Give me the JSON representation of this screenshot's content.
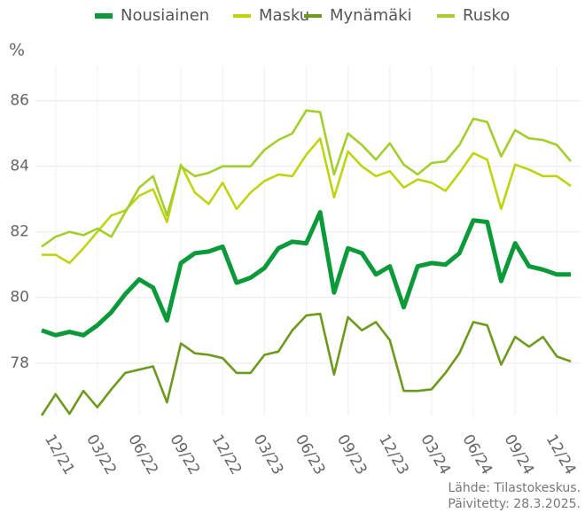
{
  "chart_data": {
    "type": "line",
    "y_label": "%",
    "notes": [
      "Lähde: Tilastokeskus.",
      "Päivitetty: 28.3.2025."
    ],
    "categories": [
      null,
      "12/21",
      null,
      null,
      "03/22",
      null,
      null,
      "06/22",
      null,
      null,
      "09/22",
      null,
      null,
      "12/22",
      null,
      null,
      "03/23",
      null,
      null,
      "06/23",
      null,
      null,
      "09/23",
      null,
      null,
      "12/23",
      null,
      null,
      "03/24",
      null,
      null,
      "06/24",
      null,
      null,
      "09/24",
      null,
      null,
      "12/24",
      null
    ],
    "series": [
      {
        "name": "Nousiainen",
        "color": "#0b9a3a",
        "values": [
          79.0,
          78.85,
          78.95,
          78.85,
          79.15,
          79.55,
          80.1,
          80.55,
          80.3,
          79.3,
          81.05,
          81.35,
          81.4,
          81.55,
          80.45,
          80.6,
          80.9,
          81.5,
          81.7,
          81.65,
          82.6,
          80.15,
          81.5,
          81.35,
          80.7,
          80.95,
          79.7,
          80.95,
          81.05,
          81.0,
          81.35,
          82.35,
          82.3,
          80.5,
          81.65,
          80.95,
          80.85,
          80.7,
          80.7
        ]
      },
      {
        "name": "Masku",
        "color": "#bfd40f",
        "values": [
          81.3,
          81.3,
          81.05,
          81.5,
          82.0,
          82.5,
          82.65,
          83.1,
          83.3,
          82.3,
          84.05,
          83.2,
          82.85,
          83.5,
          82.7,
          83.2,
          83.55,
          83.75,
          83.7,
          84.35,
          84.85,
          83.05,
          84.45,
          84.0,
          83.7,
          83.85,
          83.35,
          83.6,
          83.5,
          83.25,
          83.8,
          84.4,
          84.2,
          82.7,
          84.05,
          83.9,
          83.7,
          83.7,
          83.4
        ]
      },
      {
        "name": "Mynämäki",
        "color": "#6d9a1e",
        "values": [
          76.4,
          77.05,
          76.45,
          77.15,
          76.65,
          77.2,
          77.7,
          77.8,
          77.9,
          76.8,
          78.6,
          78.3,
          78.25,
          78.15,
          77.7,
          77.7,
          78.25,
          78.35,
          79.0,
          79.45,
          79.5,
          77.65,
          79.4,
          79.0,
          79.25,
          78.7,
          77.15,
          77.15,
          77.2,
          77.7,
          78.3,
          79.25,
          79.15,
          77.95,
          78.8,
          78.5,
          78.8,
          78.2,
          78.05
        ]
      },
      {
        "name": "Rusko",
        "color": "#a3cf2e",
        "values": [
          81.55,
          81.85,
          82.0,
          81.9,
          82.1,
          81.85,
          82.6,
          83.35,
          83.7,
          82.5,
          84.0,
          83.7,
          83.8,
          84.0,
          84.0,
          84.0,
          84.5,
          84.8,
          85.0,
          85.7,
          85.65,
          83.75,
          85.0,
          84.65,
          84.2,
          84.7,
          84.05,
          83.75,
          84.1,
          84.15,
          84.65,
          85.45,
          85.35,
          84.3,
          85.1,
          84.85,
          84.8,
          84.65,
          84.15
        ]
      }
    ],
    "ylim": [
      76.4,
      86.8
    ],
    "yticks": [
      78,
      80,
      82,
      84,
      86
    ],
    "grid": true,
    "legend": "top"
  }
}
